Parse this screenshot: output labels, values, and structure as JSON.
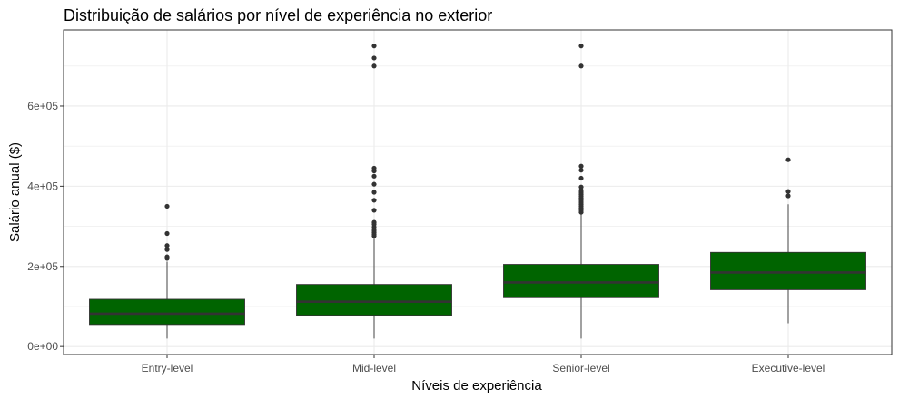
{
  "chart_data": {
    "type": "boxplot",
    "title": "Distribuição de salários por nível de experiência no exterior",
    "xlabel": "Níveis de experiência",
    "ylabel": "Salário anual ($)",
    "categories": [
      "Entry-level",
      "Mid-level",
      "Senior-level",
      "Executive-level"
    ],
    "y_ticks": [
      {
        "value": 0,
        "label": "0e+00"
      },
      {
        "value": 200000,
        "label": "2e+05"
      },
      {
        "value": 400000,
        "label": "4e+05"
      },
      {
        "value": 600000,
        "label": "6e+05"
      }
    ],
    "ylim": [
      -20000,
      790000
    ],
    "grid": true,
    "box_color": "#006400",
    "median_color": "#333333",
    "outlier_color": "#333333",
    "grid_color": "#ebebeb",
    "boxes": [
      {
        "category": "Entry-level",
        "whisker_low": 20000,
        "q1": 55000,
        "median": 82000,
        "q3": 118000,
        "whisker_high": 212000,
        "outliers": [
          220000,
          224000,
          242000,
          252000,
          282000,
          350000
        ]
      },
      {
        "category": "Mid-level",
        "whisker_low": 20000,
        "q1": 78000,
        "median": 112000,
        "q3": 155000,
        "whisker_high": 272000,
        "outliers": [
          276000,
          280000,
          285000,
          290000,
          298000,
          305000,
          310000,
          340000,
          365000,
          385000,
          405000,
          425000,
          438000,
          445000,
          700000,
          720000,
          750000
        ]
      },
      {
        "category": "Senior-level",
        "whisker_low": 20000,
        "q1": 122000,
        "median": 160000,
        "q3": 205000,
        "whisker_high": 330000,
        "outliers": [
          335000,
          340000,
          345000,
          350000,
          355000,
          360000,
          365000,
          370000,
          375000,
          380000,
          385000,
          390000,
          398000,
          420000,
          440000,
          450000,
          700000,
          750000
        ]
      },
      {
        "category": "Executive-level",
        "whisker_low": 58000,
        "q1": 142000,
        "median": 185000,
        "q3": 235000,
        "whisker_high": 355000,
        "outliers": [
          376000,
          387000,
          466000
        ]
      }
    ]
  }
}
